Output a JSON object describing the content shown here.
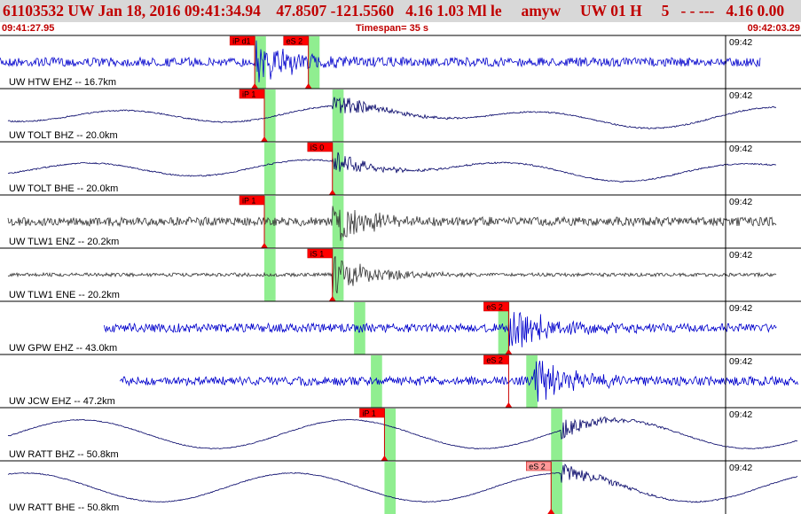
{
  "header": {
    "title": "61103532 UW Jan 18, 2016 09:41:34.94    47.8507 -121.5560   4.16 1.03 Ml le     amyw     UW 01 H     5   - - ---   4.16 0.00",
    "start_time": "09:41:27.95",
    "timespan": "Timespan=  35 s",
    "end_time": "09:42:03.29"
  },
  "colors": {
    "title": "#c00000",
    "trace_blue": "#0000cc",
    "trace_dark": "#333333",
    "trace_navy": "#000066",
    "pick_box": "#ff0000",
    "pick_box_light": "#ff9999",
    "window_green": "#90ee90"
  },
  "channels": [
    {
      "label": "UW HTW EHZ -- 16.7km",
      "minute": "09:42",
      "color": "blue",
      "wave": "noisy",
      "x_start": 0.0,
      "x_end": 0.95,
      "picks": [
        {
          "text": "iP d1",
          "x": 0.318,
          "style": "solid"
        },
        {
          "text": "eS 2",
          "x": 0.385,
          "style": "solid"
        }
      ],
      "windows": [
        {
          "x": 0.318,
          "w": 0.014
        },
        {
          "x": 0.385,
          "w": 0.014
        }
      ],
      "event": 0.318
    },
    {
      "label": "UW TOLT BHZ -- 20.0km",
      "minute": "09:42",
      "color": "navy",
      "wave": "smooth",
      "x_start": 0.01,
      "x_end": 0.97,
      "picks": [
        {
          "text": "iP 1",
          "x": 0.33,
          "style": "solid"
        }
      ],
      "windows": [
        {
          "x": 0.33,
          "w": 0.014
        },
        {
          "x": 0.415,
          "w": 0.014
        }
      ],
      "event": 0.415
    },
    {
      "label": "UW TOLT BHE -- 20.0km",
      "minute": "09:42",
      "color": "navy",
      "wave": "smooth",
      "x_start": 0.01,
      "x_end": 0.97,
      "picks": [
        {
          "text": "iS 0",
          "x": 0.415,
          "style": "solid"
        }
      ],
      "windows": [
        {
          "x": 0.33,
          "w": 0.014
        },
        {
          "x": 0.415,
          "w": 0.014
        }
      ],
      "event": 0.415
    },
    {
      "label": "UW TLW1 ENZ -- 20.2km",
      "minute": "09:42",
      "color": "dark",
      "wave": "noisy",
      "x_start": 0.01,
      "x_end": 0.97,
      "picks": [
        {
          "text": "iP 1",
          "x": 0.33,
          "style": "solid"
        }
      ],
      "windows": [
        {
          "x": 0.33,
          "w": 0.014
        },
        {
          "x": 0.415,
          "w": 0.014
        }
      ],
      "event": 0.415
    },
    {
      "label": "UW TLW1 ENE -- 20.2km",
      "minute": "09:42",
      "color": "dark",
      "wave": "quiet",
      "x_start": 0.01,
      "x_end": 0.97,
      "picks": [
        {
          "text": "iS 1",
          "x": 0.415,
          "style": "solid"
        }
      ],
      "windows": [
        {
          "x": 0.33,
          "w": 0.014
        },
        {
          "x": 0.415,
          "w": 0.014
        }
      ],
      "event": 0.415
    },
    {
      "label": "UW GPW EHZ -- 43.0km",
      "minute": "09:42",
      "color": "blue",
      "wave": "noisy",
      "x_start": 0.13,
      "x_end": 0.97,
      "picks": [
        {
          "text": "eS 2",
          "x": 0.635,
          "style": "solid"
        }
      ],
      "windows": [
        {
          "x": 0.442,
          "w": 0.014
        },
        {
          "x": 0.622,
          "w": 0.014
        }
      ],
      "event": 0.635
    },
    {
      "label": "UW JCW EHZ -- 47.2km",
      "minute": "09:42",
      "color": "blue",
      "wave": "noisy",
      "x_start": 0.15,
      "x_end": 1.0,
      "picks": [
        {
          "text": "eS 2",
          "x": 0.635,
          "style": "solid"
        }
      ],
      "windows": [
        {
          "x": 0.463,
          "w": 0.014
        },
        {
          "x": 0.657,
          "w": 0.014
        }
      ],
      "event": 0.665
    },
    {
      "label": "UW RATT BHZ -- 50.8km",
      "minute": "09:42",
      "color": "navy",
      "wave": "long",
      "x_start": 0.01,
      "x_end": 1.0,
      "picks": [
        {
          "text": "iP 1",
          "x": 0.48,
          "style": "solid"
        }
      ],
      "windows": [
        {
          "x": 0.48,
          "w": 0.014
        },
        {
          "x": 0.688,
          "w": 0.014
        }
      ],
      "event": 0.7
    },
    {
      "label": "UW RATT BHE -- 50.8km",
      "minute": "09:42",
      "color": "navy",
      "wave": "long",
      "x_start": 0.01,
      "x_end": 1.0,
      "picks": [
        {
          "text": "eS 2",
          "x": 0.688,
          "style": "outline"
        }
      ],
      "windows": [
        {
          "x": 0.48,
          "w": 0.014
        },
        {
          "x": 0.688,
          "w": 0.014
        }
      ],
      "event": 0.7
    }
  ]
}
